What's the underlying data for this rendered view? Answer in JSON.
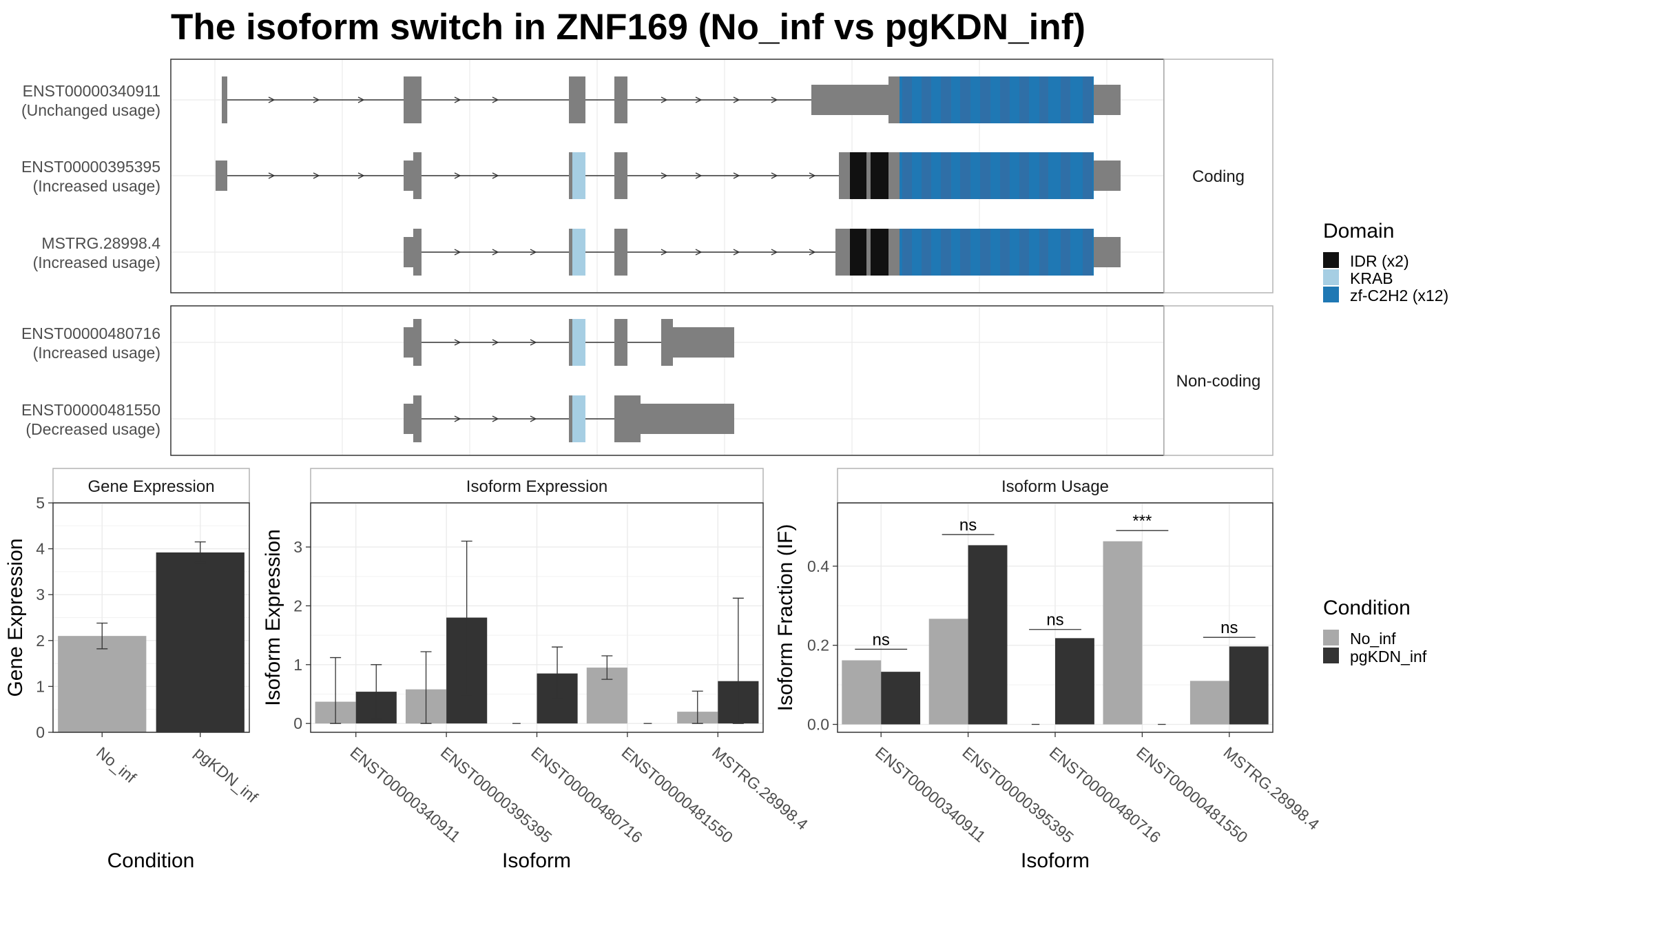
{
  "title": "The isoform switch in ZNF169 (No_inf vs pgKDN_inf)",
  "colors": {
    "exon": "#7f7f7f",
    "idr": "#111111",
    "krab": "#a6cee3",
    "zf": "#1f78b4",
    "no_inf": "#a9a9a9",
    "pgkdn_inf": "#333333",
    "grid": "#ebebeb",
    "panel_border": "#333333",
    "strip_border": "#b3b3b3"
  },
  "structure": {
    "facets": [
      {
        "label": "Coding",
        "isoforms": [
          {
            "id": "ENST00000340911",
            "usage": "(Unchanged usage)"
          },
          {
            "id": "ENST00000395395",
            "usage": "(Increased usage)"
          },
          {
            "id": "MSTRG.28998.4",
            "usage": "(Increased usage)"
          }
        ]
      },
      {
        "label": "Non-coding",
        "isoforms": [
          {
            "id": "ENST00000480716",
            "usage": "(Increased usage)"
          },
          {
            "id": "ENST00000481550",
            "usage": "(Decreased usage)"
          }
        ]
      }
    ]
  },
  "domain_legend": {
    "title": "Domain",
    "items": [
      {
        "label": "IDR (x2)",
        "color": "#111111"
      },
      {
        "label": "KRAB",
        "color": "#a6cee3"
      },
      {
        "label": "zf-C2H2 (x12)",
        "color": "#1f78b4"
      }
    ]
  },
  "condition_legend": {
    "title": "Condition",
    "items": [
      {
        "label": "No_inf",
        "color": "#a9a9a9"
      },
      {
        "label": "pgKDN_inf",
        "color": "#333333"
      }
    ]
  },
  "chart_data": [
    {
      "type": "bar",
      "title": "Gene Expression",
      "xlabel": "Condition",
      "ylabel": "Gene Expression",
      "categories": [
        "No_inf",
        "pgKDN_inf"
      ],
      "values": [
        2.1,
        3.92
      ],
      "error_low": [
        1.82,
        3.7
      ],
      "error_high": [
        2.38,
        4.15
      ],
      "ylim": [
        0,
        5
      ],
      "yticks": [
        0,
        1,
        2,
        3,
        4,
        5
      ]
    },
    {
      "type": "bar",
      "title": "Isoform Expression",
      "xlabel": "Isoform",
      "ylabel": "Isoform Expression",
      "categories": [
        "ENST00000340911",
        "ENST00000395395",
        "ENST00000480716",
        "ENST00000481550",
        "MSTRG.28998.4"
      ],
      "series": [
        {
          "name": "No_inf",
          "values": [
            0.37,
            0.58,
            0,
            0.95,
            0.2
          ],
          "error_low": [
            0,
            0,
            0,
            0.75,
            0
          ],
          "error_high": [
            1.12,
            1.22,
            0,
            1.15,
            0.55
          ]
        },
        {
          "name": "pgKDN_inf",
          "values": [
            0.54,
            1.8,
            0.85,
            0,
            0.72
          ],
          "error_low": [
            0.07,
            0.48,
            0.42,
            0,
            0
          ],
          "error_high": [
            1.0,
            3.1,
            1.3,
            0,
            2.13
          ]
        }
      ],
      "ylim": [
        -0.15,
        3.75
      ],
      "yticks": [
        0,
        1,
        2,
        3
      ]
    },
    {
      "type": "bar",
      "title": "Isoform Usage",
      "xlabel": "Isoform",
      "ylabel": "Isoform Fraction (IF)",
      "categories": [
        "ENST00000340911",
        "ENST00000395395",
        "ENST00000480716",
        "ENST00000481550",
        "MSTRG.28998.4"
      ],
      "series": [
        {
          "name": "No_inf",
          "values": [
            0.162,
            0.267,
            0,
            0.463,
            0.11
          ]
        },
        {
          "name": "pgKDN_inf",
          "values": [
            0.133,
            0.453,
            0.218,
            0,
            0.197
          ]
        }
      ],
      "significance": [
        "ns",
        "ns",
        "ns",
        "***",
        "ns"
      ],
      "significance_y": [
        0.19,
        0.48,
        0.24,
        0.49,
        0.22
      ],
      "ylim": [
        -0.02,
        0.56
      ],
      "yticks": [
        "0.0",
        "0.2",
        "0.4"
      ]
    }
  ]
}
